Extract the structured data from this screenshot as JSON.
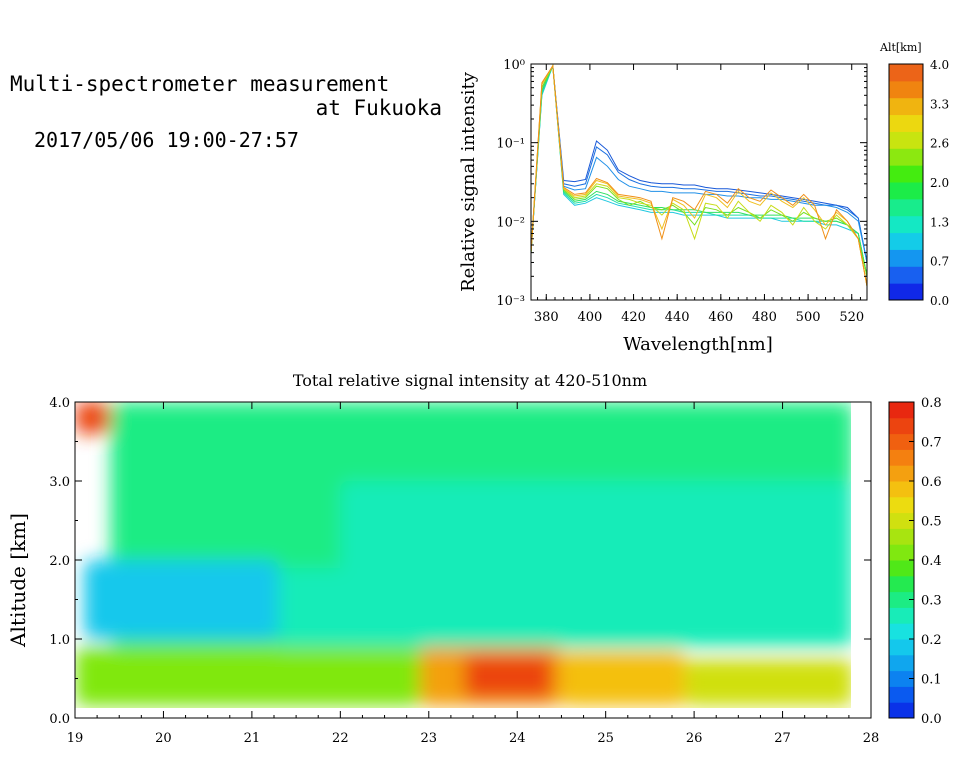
{
  "header": {
    "title_line1": "Multi-spectrometer measurement",
    "title_line2": "at Fukuoka",
    "date": "2017/05/06 19:00-27:57"
  },
  "chart_data": [
    {
      "type": "line",
      "ylabel": "Relative signal intensity",
      "xlabel": "Wavelength[nm]",
      "xlim": [
        373,
        527
      ],
      "ylim": [
        0.001,
        1
      ],
      "yscale": "log",
      "x_ticks": [
        "380",
        "400",
        "420",
        "440",
        "460",
        "480",
        "500",
        "520"
      ],
      "y_ticks": [
        "10⁻³",
        "10⁻²",
        "10⁻¹",
        "10⁰"
      ],
      "x": [
        373,
        378,
        383,
        388,
        393,
        398,
        403,
        408,
        413,
        418,
        423,
        428,
        433,
        438,
        443,
        448,
        453,
        458,
        463,
        468,
        473,
        478,
        483,
        488,
        493,
        498,
        503,
        508,
        513,
        518,
        523,
        527
      ],
      "colorbar_title": "Alt[km]",
      "colorbar_ticks": [
        "0.0",
        "0.7",
        "1.3",
        "2.0",
        "2.6",
        "3.3",
        "4.0"
      ],
      "colorbar_colors": [
        "#1028e8",
        "#1860f0",
        "#1496f0",
        "#14cce8",
        "#14e8c4",
        "#18ec8c",
        "#1cec48",
        "#44ec10",
        "#8ce810",
        "#c8e410",
        "#ecd810",
        "#f0b410",
        "#f08410",
        "#ec6418"
      ],
      "series": [
        {
          "color": "#1858d8",
          "values": [
            0.004,
            0.5,
            0.95,
            0.033,
            0.032,
            0.034,
            0.105,
            0.08,
            0.045,
            0.038,
            0.033,
            0.031,
            0.03,
            0.03,
            0.029,
            0.029,
            0.027,
            0.026,
            0.026,
            0.025,
            0.024,
            0.023,
            0.022,
            0.021,
            0.02,
            0.019,
            0.018,
            0.017,
            0.016,
            0.015,
            0.011,
            0.003
          ]
        },
        {
          "color": "#1c70e0",
          "values": [
            0.004,
            0.45,
            0.95,
            0.03,
            0.028,
            0.03,
            0.088,
            0.07,
            0.042,
            0.034,
            0.03,
            0.028,
            0.027,
            0.027,
            0.026,
            0.026,
            0.025,
            0.024,
            0.024,
            0.023,
            0.022,
            0.021,
            0.021,
            0.02,
            0.019,
            0.018,
            0.017,
            0.016,
            0.016,
            0.014,
            0.011,
            0.003
          ]
        },
        {
          "color": "#2090e8",
          "values": [
            0.004,
            0.42,
            0.95,
            0.028,
            0.025,
            0.026,
            0.065,
            0.05,
            0.034,
            0.028,
            0.026,
            0.024,
            0.024,
            0.023,
            0.023,
            0.023,
            0.022,
            0.022,
            0.021,
            0.021,
            0.02,
            0.02,
            0.019,
            0.019,
            0.018,
            0.017,
            0.016,
            0.016,
            0.015,
            0.013,
            0.01,
            0.003
          ]
        },
        {
          "color": "#20c8e0",
          "values": [
            0.004,
            0.4,
            0.95,
            0.022,
            0.016,
            0.017,
            0.02,
            0.018,
            0.016,
            0.015,
            0.014,
            0.013,
            0.013,
            0.013,
            0.012,
            0.012,
            0.012,
            0.012,
            0.011,
            0.011,
            0.011,
            0.011,
            0.011,
            0.01,
            0.01,
            0.01,
            0.01,
            0.009,
            0.009,
            0.008,
            0.007,
            0.002
          ]
        },
        {
          "color": "#20e0a8",
          "values": [
            0.004,
            0.42,
            0.95,
            0.023,
            0.017,
            0.018,
            0.022,
            0.02,
            0.017,
            0.016,
            0.015,
            0.014,
            0.014,
            0.014,
            0.013,
            0.013,
            0.013,
            0.012,
            0.012,
            0.012,
            0.012,
            0.011,
            0.011,
            0.011,
            0.011,
            0.01,
            0.01,
            0.01,
            0.01,
            0.009,
            0.007,
            0.002
          ]
        },
        {
          "color": "#30e060",
          "values": [
            0.004,
            0.46,
            0.95,
            0.024,
            0.018,
            0.019,
            0.024,
            0.022,
            0.018,
            0.017,
            0.016,
            0.015,
            0.015,
            0.014,
            0.014,
            0.014,
            0.013,
            0.013,
            0.013,
            0.013,
            0.012,
            0.012,
            0.012,
            0.012,
            0.011,
            0.011,
            0.011,
            0.01,
            0.01,
            0.009,
            0.007,
            0.002
          ]
        },
        {
          "color": "#78e020",
          "values": [
            0.004,
            0.5,
            0.95,
            0.025,
            0.019,
            0.02,
            0.028,
            0.026,
            0.019,
            0.016,
            0.018,
            0.015,
            0.014,
            0.016,
            0.013,
            0.009,
            0.015,
            0.014,
            0.012,
            0.015,
            0.013,
            0.011,
            0.014,
            0.012,
            0.01,
            0.013,
            0.011,
            0.01,
            0.011,
            0.009,
            0.006,
            0.002
          ]
        },
        {
          "color": "#c8dc18",
          "values": [
            0.004,
            0.55,
            0.95,
            0.026,
            0.02,
            0.021,
            0.03,
            0.028,
            0.02,
            0.019,
            0.017,
            0.016,
            0.012,
            0.017,
            0.014,
            0.006,
            0.017,
            0.016,
            0.011,
            0.018,
            0.013,
            0.01,
            0.016,
            0.013,
            0.009,
            0.015,
            0.01,
            0.008,
            0.012,
            0.009,
            0.006,
            0.0015
          ]
        },
        {
          "color": "#f0c020",
          "values": [
            0.004,
            0.55,
            0.95,
            0.026,
            0.021,
            0.022,
            0.033,
            0.03,
            0.021,
            0.02,
            0.019,
            0.017,
            0.008,
            0.019,
            0.016,
            0.011,
            0.022,
            0.02,
            0.015,
            0.024,
            0.018,
            0.016,
            0.023,
            0.018,
            0.015,
            0.02,
            0.014,
            0.009,
            0.013,
            0.01,
            0.006,
            0.0015
          ]
        },
        {
          "color": "#f09018",
          "values": [
            0.004,
            0.58,
            0.95,
            0.027,
            0.022,
            0.023,
            0.035,
            0.031,
            0.022,
            0.021,
            0.02,
            0.018,
            0.006,
            0.02,
            0.018,
            0.014,
            0.024,
            0.022,
            0.017,
            0.026,
            0.02,
            0.018,
            0.025,
            0.02,
            0.016,
            0.022,
            0.016,
            0.006,
            0.014,
            0.01,
            0.006,
            0.0015
          ]
        }
      ]
    },
    {
      "type": "heatmap",
      "title": "Total relative signal intensity at 420-510nm",
      "ylabel": "Altitude [km]",
      "xlabel": "",
      "xlim": [
        19,
        28
      ],
      "ylim": [
        0,
        4
      ],
      "x_ticks": [
        "19",
        "20",
        "21",
        "22",
        "23",
        "24",
        "25",
        "26",
        "27",
        "28"
      ],
      "y_ticks": [
        "0.0",
        "1.0",
        "2.0",
        "3.0",
        "4.0"
      ],
      "data_extent": {
        "x": [
          19,
          27.8
        ],
        "y": [
          0.15,
          4.0
        ]
      },
      "colorbar_ticks": [
        "0.0",
        "0.1",
        "0.2",
        "0.3",
        "0.4",
        "0.5",
        "0.6",
        "0.7",
        "0.8"
      ],
      "colorbar_range": [
        0,
        0.8
      ],
      "colorbar_colors": [
        "#0a32e8",
        "#0a5af0",
        "#0c82f0",
        "#10a6ee",
        "#14c8ec",
        "#18e2e0",
        "#18ecb8",
        "#1cec84",
        "#24ea50",
        "#50e818",
        "#80e810",
        "#a8e410",
        "#d0e010",
        "#ecdc10",
        "#f4c010",
        "#f4a010",
        "#f48010",
        "#f06010",
        "#ec4410",
        "#e82810"
      ],
      "layers": [
        {
          "alt_range": [
            0.9,
            4.0
          ],
          "time_range": [
            19.4,
            27.8
          ],
          "value": 0.32
        },
        {
          "alt_range": [
            1.0,
            2.0
          ],
          "time_range": [
            19.1,
            21.3
          ],
          "value": 0.17
        },
        {
          "alt_range": [
            0.8,
            1.9
          ],
          "time_range": [
            21.3,
            23.0
          ],
          "value": 0.25
        },
        {
          "alt_range": [
            0.15,
            0.9
          ],
          "time_range": [
            19.0,
            22.9
          ],
          "value": 0.42
        },
        {
          "alt_range": [
            0.15,
            0.95
          ],
          "time_range": [
            22.9,
            24.5
          ],
          "value": 0.62
        },
        {
          "alt_range": [
            0.25,
            0.8
          ],
          "time_range": [
            23.4,
            24.4
          ],
          "value": 0.72
        },
        {
          "alt_range": [
            0.15,
            0.85
          ],
          "time_range": [
            24.5,
            25.9
          ],
          "value": 0.58
        },
        {
          "alt_range": [
            0.15,
            0.75
          ],
          "time_range": [
            25.9,
            27.8
          ],
          "value": 0.5
        },
        {
          "alt_range": [
            0.9,
            3.0
          ],
          "time_range": [
            22.0,
            27.8
          ],
          "value": 0.27
        },
        {
          "alt_range": [
            3.6,
            4.0
          ],
          "time_range": [
            19.0,
            19.4
          ],
          "value": 0.75
        }
      ]
    }
  ]
}
